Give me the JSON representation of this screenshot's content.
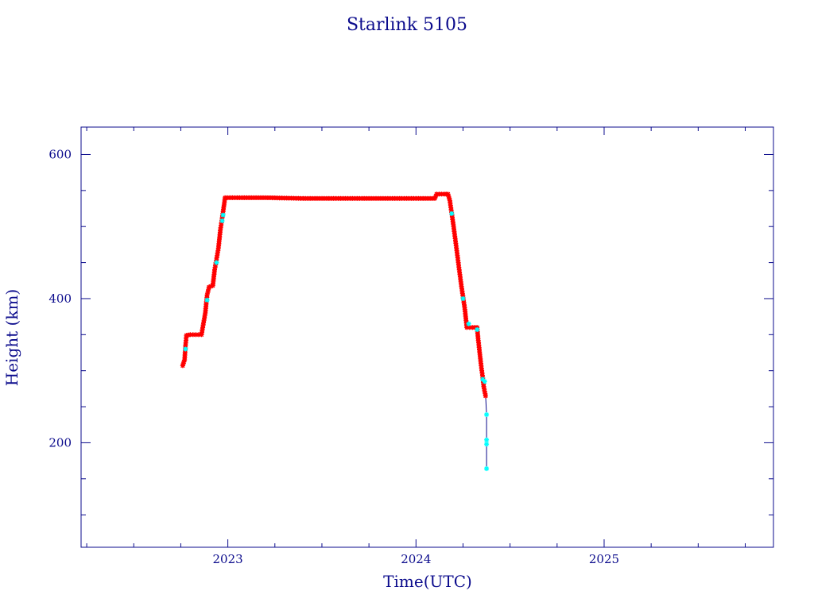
{
  "chart_data": {
    "type": "scatter",
    "title": "Starlink 5105",
    "xlabel": "Time(UTC)",
    "ylabel": "Height (km)",
    "xlim": [
      2022.22,
      2025.9
    ],
    "ylim": [
      55,
      638
    ],
    "x_ticks": [
      2023,
      2024,
      2025
    ],
    "x_tick_labels": [
      "2023",
      "2024",
      "2025"
    ],
    "y_ticks": [
      200,
      400,
      600
    ],
    "y_tick_labels": [
      "200",
      "400",
      "600"
    ],
    "x_minor_step": 0.25,
    "y_minor_step": 50,
    "grid": false,
    "legend": "none",
    "colors": {
      "axes": "#0b0b8c",
      "track": "#ff0000",
      "track_alt": "#00ffff",
      "line": "#0b0b8c"
    },
    "marker": "asterisk",
    "series": [
      {
        "color": "#ff0000",
        "points": [
          [
            2022.76,
            307
          ],
          [
            2022.77,
            315
          ],
          [
            2022.775,
            335
          ],
          [
            2022.78,
            349
          ],
          [
            2022.8,
            350
          ],
          [
            2022.83,
            350
          ],
          [
            2022.86,
            350
          ],
          [
            2022.88,
            380
          ],
          [
            2022.89,
            405
          ],
          [
            2022.9,
            416
          ],
          [
            2022.92,
            418
          ],
          [
            2022.93,
            440
          ],
          [
            2022.95,
            470
          ],
          [
            2022.96,
            495
          ],
          [
            2022.97,
            512
          ],
          [
            2022.98,
            530
          ],
          [
            2022.985,
            540
          ],
          [
            2023.05,
            540
          ],
          [
            2023.2,
            540
          ],
          [
            2023.4,
            539
          ],
          [
            2023.6,
            539
          ],
          [
            2023.8,
            539
          ],
          [
            2024.0,
            539
          ],
          [
            2024.1,
            539
          ],
          [
            2024.11,
            545
          ],
          [
            2024.15,
            545
          ],
          [
            2024.17,
            545
          ],
          [
            2024.18,
            536
          ],
          [
            2024.2,
            500
          ],
          [
            2024.22,
            460
          ],
          [
            2024.24,
            420
          ],
          [
            2024.26,
            385
          ],
          [
            2024.27,
            360
          ],
          [
            2024.3,
            360
          ],
          [
            2024.325,
            360
          ],
          [
            2024.33,
            345
          ],
          [
            2024.345,
            310
          ],
          [
            2024.355,
            290
          ],
          [
            2024.36,
            278
          ],
          [
            2024.37,
            265
          ]
        ]
      },
      {
        "color": "#00ffff",
        "points": [
          [
            2022.775,
            330
          ],
          [
            2022.89,
            398
          ],
          [
            2022.94,
            450
          ],
          [
            2022.97,
            508
          ],
          [
            2022.975,
            516
          ],
          [
            2024.19,
            518
          ],
          [
            2024.25,
            400
          ],
          [
            2024.28,
            365
          ],
          [
            2024.325,
            357
          ],
          [
            2024.355,
            288
          ],
          [
            2024.365,
            285
          ],
          [
            2024.375,
            239
          ],
          [
            2024.375,
            204
          ],
          [
            2024.375,
            198
          ],
          [
            2024.375,
            164
          ]
        ]
      }
    ],
    "decay_line": [
      [
        2024.37,
        265
      ],
      [
        2024.375,
        239
      ],
      [
        2024.375,
        204
      ],
      [
        2024.375,
        164
      ]
    ]
  }
}
